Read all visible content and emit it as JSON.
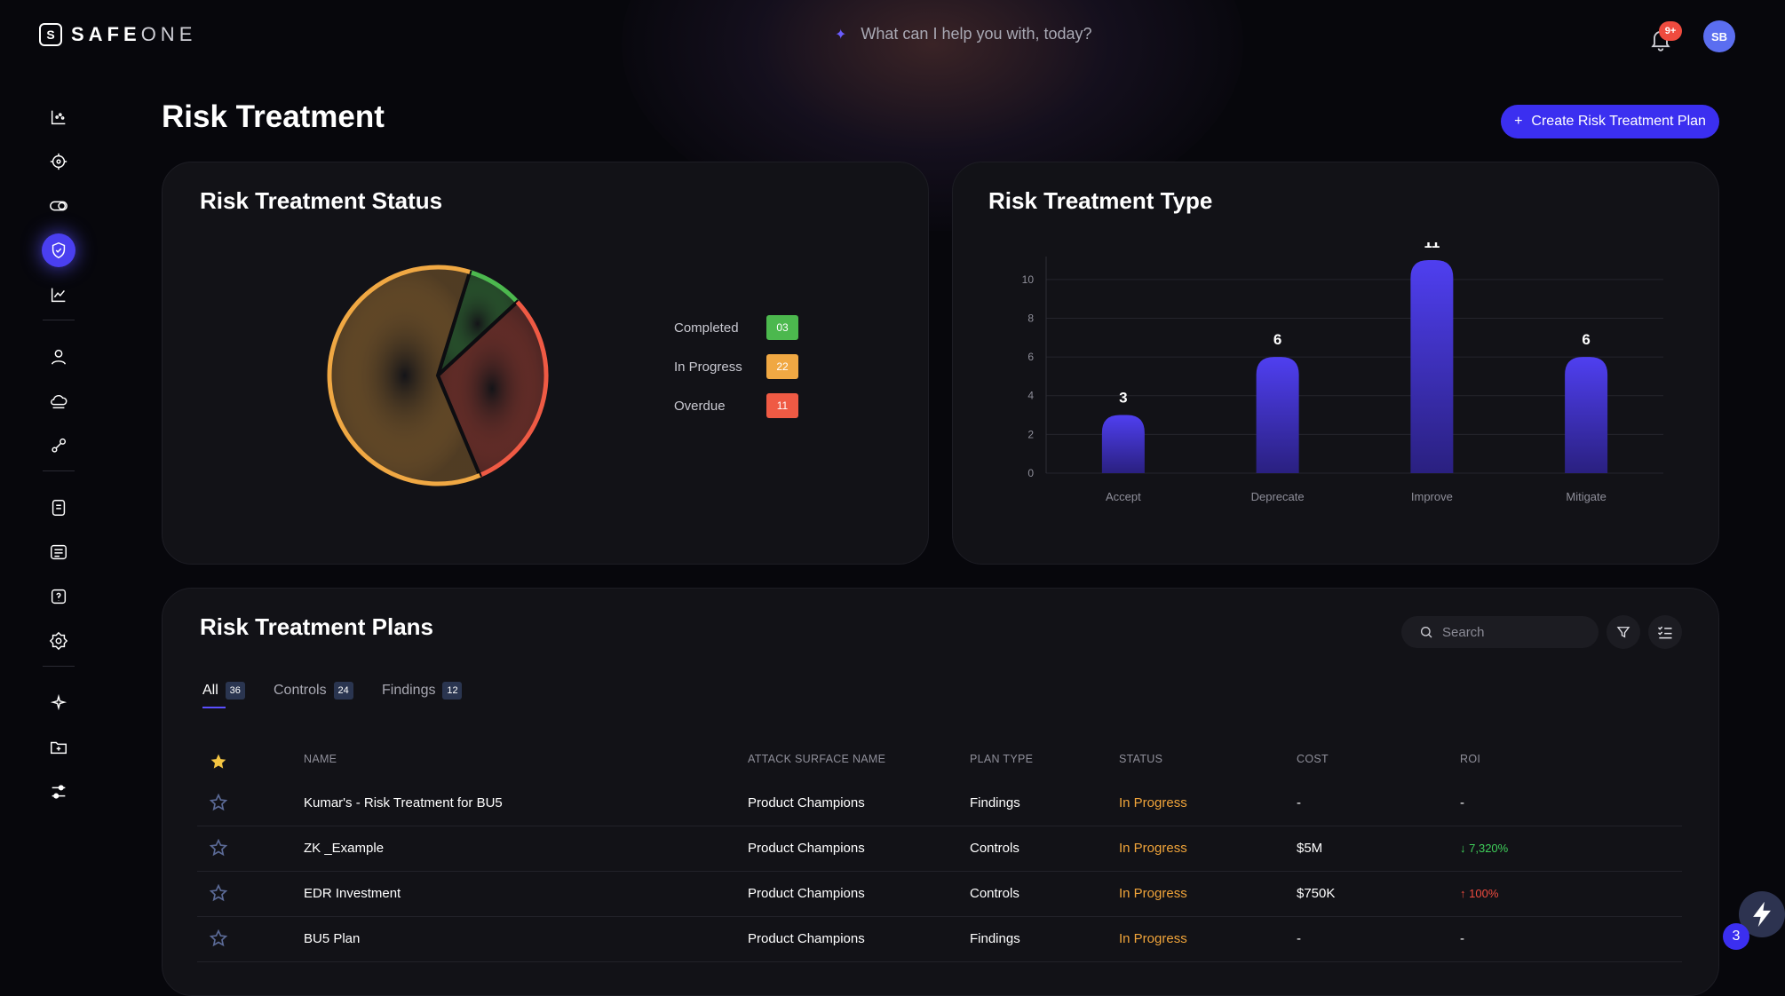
{
  "app": {
    "logo_mark": "S",
    "logo_bold": "SAFE",
    "logo_light": "ONE"
  },
  "assistant": {
    "prompt": "What can I help you with, today?"
  },
  "notifications": {
    "badge": "9+"
  },
  "user": {
    "initials": "SB"
  },
  "sidebar": {
    "items": [
      {
        "name": "dashboard-icon"
      },
      {
        "name": "target-icon"
      },
      {
        "name": "toggle-icon"
      },
      {
        "name": "shield-check-icon",
        "active": true
      },
      {
        "name": "trend-chart-icon"
      },
      {
        "name": "user-icon"
      },
      {
        "name": "cloud-icon"
      },
      {
        "name": "integrations-icon"
      },
      {
        "name": "database-icon"
      },
      {
        "name": "list-icon"
      },
      {
        "name": "help-icon"
      },
      {
        "name": "settings-gear-icon"
      },
      {
        "name": "sparkle-icon"
      },
      {
        "name": "folder-plus-icon"
      },
      {
        "name": "sliders-icon"
      }
    ]
  },
  "page": {
    "title": "Risk Treatment",
    "create_button": "Create Risk Treatment Plan"
  },
  "status_card": {
    "title": "Risk Treatment Status",
    "legend": [
      {
        "label": "Completed",
        "value": "03",
        "color": "#4cb84e"
      },
      {
        "label": "In Progress",
        "value": "22",
        "color": "#f0a843"
      },
      {
        "label": "Overdue",
        "value": "11",
        "color": "#ef5a44"
      }
    ]
  },
  "chart_data": {
    "type": "bar",
    "title": "Risk Treatment Type",
    "categories": [
      "Accept",
      "Deprecate",
      "Improve",
      "Mitigate"
    ],
    "values": [
      3,
      6,
      11,
      6
    ],
    "yticks": [
      0,
      2,
      4,
      6,
      8,
      10
    ],
    "ylim": [
      0,
      11
    ],
    "grid": true,
    "color": "#4f3ff0"
  },
  "pie_data": {
    "type": "pie",
    "slices": [
      {
        "label": "Completed",
        "value": 3,
        "color": "#4cb84e"
      },
      {
        "label": "Overdue",
        "value": 11,
        "color": "#ef5a44"
      },
      {
        "label": "In Progress",
        "value": 22,
        "color": "#f0a843"
      }
    ]
  },
  "plans": {
    "title": "Risk Treatment Plans",
    "search_placeholder": "Search",
    "tabs": [
      {
        "label": "All",
        "count": "36"
      },
      {
        "label": "Controls",
        "count": "24"
      },
      {
        "label": "Findings",
        "count": "12"
      }
    ],
    "columns": [
      "NAME",
      "ATTACK SURFACE NAME",
      "PLAN TYPE",
      "STATUS",
      "COST",
      "ROI"
    ],
    "rows": [
      {
        "name": "Kumar's - Risk Treatment for BU5",
        "surface": "Product Champions",
        "type": "Findings",
        "status": "In Progress",
        "cost": "-",
        "roi": "-",
        "roi_dir": "none"
      },
      {
        "name": "ZK _Example",
        "surface": "Product Champions",
        "type": "Controls",
        "status": "In Progress",
        "cost": "$5M",
        "roi": "7,320%",
        "roi_dir": "down"
      },
      {
        "name": "EDR Investment",
        "surface": "Product Champions",
        "type": "Controls",
        "status": "In Progress",
        "cost": "$750K",
        "roi": "100%",
        "roi_dir": "up"
      },
      {
        "name": "BU5 Plan",
        "surface": "Product Champions",
        "type": "Findings",
        "status": "In Progress",
        "cost": "-",
        "roi": "-",
        "roi_dir": "none"
      }
    ]
  },
  "chat_fab": {
    "badge": "3"
  }
}
